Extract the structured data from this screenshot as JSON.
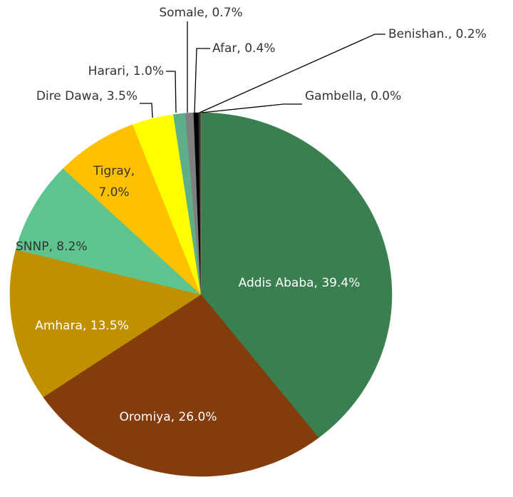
{
  "chart_data": {
    "type": "pie",
    "values": [
      39.4,
      26.0,
      13.5,
      8.2,
      7.0,
      3.5,
      1.0,
      0.7,
      0.4,
      0.2,
      0.0
    ],
    "value_labels": [
      "Addis Ababa, 39.4%",
      "Oromiya, 26.0%",
      "Amhara, 13.5%",
      "SNNP, 8.2%",
      "Tigray,\n7.0%",
      "Dire Dawa, 3.5%",
      "Harari, 1.0%",
      "Somale, 0.7%",
      "Afar, 0.4%",
      "Benishan., 0.2%",
      "Gambella, 0.0%"
    ],
    "colors": [
      "#3a7f50",
      "#843c0c",
      "#bf9000",
      "#5ec48e",
      "#ffc000",
      "#ffff00",
      "#5fae8a",
      "#7f7f7f",
      "#000000",
      "#2f2f2f",
      "#d99694"
    ]
  }
}
